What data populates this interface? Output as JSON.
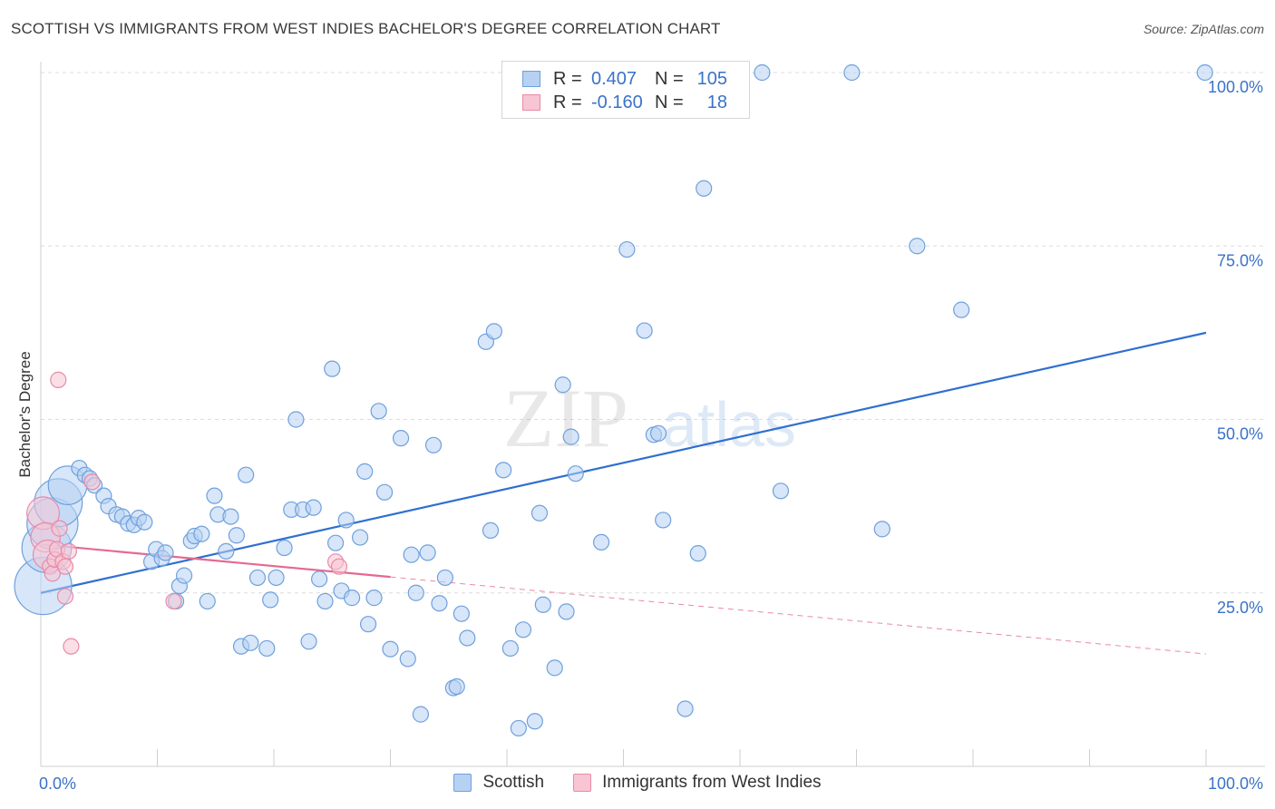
{
  "title": "SCOTTISH VS IMMIGRANTS FROM WEST INDIES BACHELOR'S DEGREE CORRELATION CHART",
  "source": "Source: ZipAtlas.com",
  "watermark": {
    "zip": "ZIP",
    "atlas": "atlas"
  },
  "legend_stats": [
    {
      "r_label": "R =",
      "r_value": "0.407",
      "n_label": "N =",
      "n_value": "105",
      "color": "#6fa0dd",
      "fill": "#b7d1f3"
    },
    {
      "r_label": "R =",
      "r_value": "-0.160",
      "n_label": "N =",
      "n_value": "18",
      "color": "#e98aa8",
      "fill": "#f8c5d4"
    }
  ],
  "chart_data": {
    "type": "scatter",
    "title": "SCOTTISH VS IMMIGRANTS FROM WEST INDIES BACHELOR'S DEGREE CORRELATION CHART",
    "xlabel": "",
    "ylabel": "Bachelor's Degree",
    "xlim": [
      0,
      100
    ],
    "ylim": [
      0,
      100
    ],
    "x_tick_labels": [
      "0.0%",
      "100.0%"
    ],
    "y_tick_labels": [
      "25.0%",
      "50.0%",
      "75.0%",
      "100.0%"
    ],
    "y_ticks": [
      25,
      50,
      75,
      100
    ],
    "grid": "horizontal dashed",
    "legend_position": "bottom-center",
    "series": [
      {
        "name": "Scottish",
        "color": "#6fa0dd",
        "fill": "#b7d1f3",
        "trend": {
          "x": [
            0,
            100
          ],
          "y": [
            25.0,
            62.5
          ]
        },
        "points": [
          [
            0.2,
            26,
            3
          ],
          [
            0.5,
            31.5,
            2.5
          ],
          [
            1.0,
            35,
            2.6
          ],
          [
            1.5,
            38,
            2.4
          ],
          [
            2.3,
            40.5,
            1.8
          ],
          [
            3.3,
            43,
            1
          ],
          [
            3.8,
            42,
            1
          ],
          [
            4.2,
            41.5,
            1
          ],
          [
            4.6,
            40.5,
            1
          ],
          [
            5.4,
            39,
            1
          ],
          [
            5.8,
            37.5,
            1
          ],
          [
            6.5,
            36.3,
            1
          ],
          [
            7.0,
            36,
            1
          ],
          [
            7.5,
            35,
            1
          ],
          [
            8.0,
            34.8,
            1
          ],
          [
            8.4,
            35.8,
            1
          ],
          [
            8.9,
            35.2,
            1
          ],
          [
            9.5,
            29.5,
            1
          ],
          [
            9.9,
            31.3,
            1
          ],
          [
            10.4,
            30,
            1
          ],
          [
            10.7,
            30.8,
            1
          ],
          [
            11.6,
            23.8,
            1
          ],
          [
            11.9,
            26,
            1
          ],
          [
            12.3,
            27.5,
            1
          ],
          [
            12.9,
            32.5,
            1
          ],
          [
            13.2,
            33.2,
            1
          ],
          [
            13.8,
            33.5,
            1
          ],
          [
            14.3,
            23.8,
            1
          ],
          [
            14.9,
            39,
            1
          ],
          [
            15.2,
            36.3,
            1
          ],
          [
            15.9,
            31,
            1
          ],
          [
            16.3,
            36,
            1
          ],
          [
            16.8,
            33.3,
            1
          ],
          [
            17.2,
            17.3,
            1
          ],
          [
            18.0,
            17.8,
            1
          ],
          [
            17.6,
            42,
            1
          ],
          [
            18.6,
            27.2,
            1
          ],
          [
            19.4,
            17,
            1
          ],
          [
            19.7,
            24,
            1
          ],
          [
            20.2,
            27.2,
            1
          ],
          [
            20.9,
            31.5,
            1
          ],
          [
            21.5,
            37,
            1
          ],
          [
            21.9,
            50,
            1
          ],
          [
            22.5,
            37,
            1
          ],
          [
            23.0,
            18,
            1
          ],
          [
            23.4,
            37.3,
            1
          ],
          [
            23.9,
            27,
            1
          ],
          [
            24.4,
            23.8,
            1
          ],
          [
            25.0,
            57.3,
            1
          ],
          [
            25.3,
            32.2,
            1
          ],
          [
            25.8,
            25.3,
            1
          ],
          [
            26.2,
            35.5,
            1
          ],
          [
            26.7,
            24.3,
            1
          ],
          [
            27.4,
            33,
            1
          ],
          [
            27.8,
            42.5,
            1
          ],
          [
            28.1,
            20.5,
            1
          ],
          [
            28.6,
            24.3,
            1
          ],
          [
            29.0,
            51.2,
            1
          ],
          [
            29.5,
            39.5,
            1
          ],
          [
            30.0,
            16.9,
            1
          ],
          [
            30.9,
            47.3,
            1
          ],
          [
            31.5,
            15.5,
            1
          ],
          [
            31.8,
            30.5,
            1
          ],
          [
            32.2,
            25,
            1
          ],
          [
            32.6,
            7.5,
            1
          ],
          [
            33.2,
            30.8,
            1
          ],
          [
            33.7,
            46.3,
            1
          ],
          [
            34.2,
            23.5,
            1
          ],
          [
            34.7,
            27.2,
            1
          ],
          [
            35.4,
            11.3,
            1
          ],
          [
            35.7,
            11.5,
            1
          ],
          [
            36.1,
            22,
            1
          ],
          [
            36.6,
            18.5,
            1
          ],
          [
            38.2,
            61.2,
            1
          ],
          [
            38.6,
            34,
            1
          ],
          [
            38.9,
            62.7,
            1
          ],
          [
            39.7,
            42.7,
            1
          ],
          [
            40.3,
            17,
            1
          ],
          [
            41.0,
            5.5,
            1
          ],
          [
            41.4,
            19.7,
            1
          ],
          [
            42.4,
            6.5,
            1
          ],
          [
            42.8,
            36.5,
            1
          ],
          [
            43.1,
            23.3,
            1
          ],
          [
            44.1,
            14.2,
            1
          ],
          [
            44.8,
            55,
            1
          ],
          [
            45.1,
            22.3,
            1
          ],
          [
            45.5,
            47.5,
            1
          ],
          [
            45.9,
            42.2,
            1
          ],
          [
            48.1,
            32.3,
            1
          ],
          [
            50.3,
            74.5,
            1
          ],
          [
            51.8,
            62.8,
            1
          ],
          [
            52.6,
            47.8,
            1
          ],
          [
            53.0,
            48,
            1
          ],
          [
            53.4,
            35.5,
            1
          ],
          [
            55.3,
            8.3,
            1
          ],
          [
            56.4,
            30.7,
            1
          ],
          [
            56.9,
            83.3,
            1
          ],
          [
            61.9,
            100,
            1
          ],
          [
            63.5,
            39.7,
            1
          ],
          [
            69.6,
            100,
            1
          ],
          [
            72.2,
            34.2,
            1
          ],
          [
            75.2,
            75,
            1
          ],
          [
            79.0,
            65.8,
            1
          ],
          [
            99.9,
            100,
            1
          ]
        ]
      },
      {
        "name": "Immigrants from West Indies",
        "color": "#e98aa8",
        "fill": "#f8c5d4",
        "trend": {
          "x": [
            0,
            30
          ],
          "y": [
            32.0,
            27.3
          ]
        },
        "trend_ext": {
          "x": [
            30,
            100
          ],
          "y": [
            27.3,
            16.2
          ]
        },
        "points": [
          [
            0.2,
            36.5,
            1.4
          ],
          [
            0.4,
            33,
            1.2
          ],
          [
            0.6,
            30.5,
            1.2
          ],
          [
            0.8,
            28.8,
            1
          ],
          [
            1.0,
            27.8,
            1
          ],
          [
            1.2,
            29.8,
            1
          ],
          [
            1.4,
            31.3,
            1
          ],
          [
            1.6,
            34.3,
            1
          ],
          [
            1.9,
            29.5,
            1
          ],
          [
            2.1,
            24.5,
            1
          ],
          [
            2.4,
            31,
            1
          ],
          [
            2.1,
            28.8,
            1
          ],
          [
            2.6,
            17.3,
            1
          ],
          [
            1.5,
            55.7,
            1
          ],
          [
            4.4,
            41,
            1
          ],
          [
            11.4,
            23.8,
            1
          ],
          [
            25.3,
            29.5,
            1
          ],
          [
            25.6,
            28.8,
            1
          ]
        ]
      }
    ]
  }
}
